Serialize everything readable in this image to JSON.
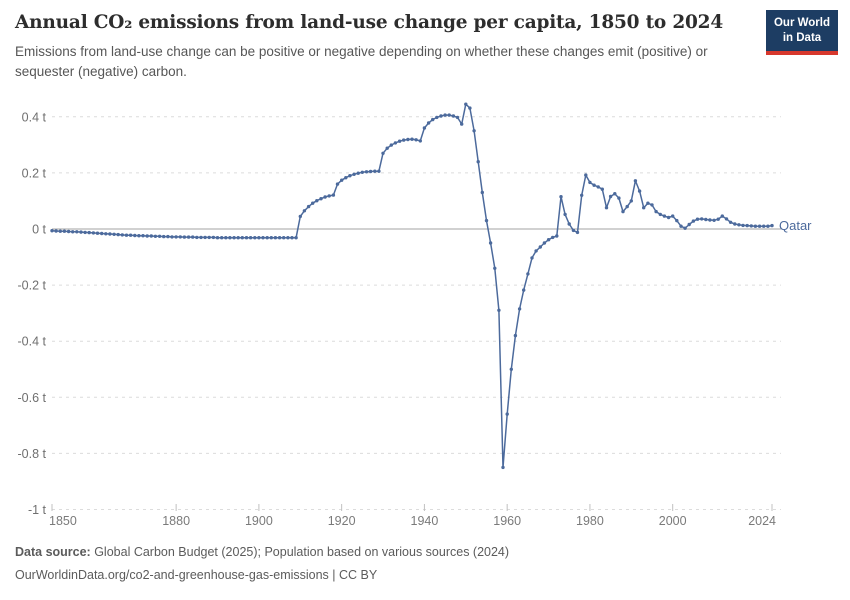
{
  "logo": {
    "line1": "Our World",
    "line2": "in Data",
    "bg_color": "#1d3d63",
    "bar_color": "#d7382d"
  },
  "chart_data": {
    "type": "line",
    "title": "Annual CO₂ emissions from land-use change per capita, 1850 to 2024",
    "subtitle": "Emissions from land-use change can be positive or negative depending on whether these changes emit (positive) or sequester (negative) carbon.",
    "x_range": [
      1850,
      2024
    ],
    "xticks": [
      1850,
      1880,
      1900,
      1920,
      1940,
      1960,
      1980,
      2000,
      2024
    ],
    "yticks": [
      {
        "value": 0.4,
        "label": "0.4 t"
      },
      {
        "value": 0.2,
        "label": "0.2 t"
      },
      {
        "value": 0,
        "label": "0 t"
      },
      {
        "value": -0.2,
        "label": "-0.2 t"
      },
      {
        "value": -0.4,
        "label": "-0.4 t"
      },
      {
        "value": -0.6,
        "label": "-0.6 t"
      },
      {
        "value": -0.8,
        "label": "-0.8 t"
      },
      {
        "value": -1,
        "label": "-1 t"
      }
    ],
    "ylim": [
      -1,
      0.45
    ],
    "grid": true,
    "legend_position": "end-of-line-label",
    "line_color": "#4c6a9c",
    "series": [
      {
        "name": "Qatar",
        "start_year": 1850,
        "values": [
          -0.006,
          -0.007,
          -0.008,
          -0.008,
          -0.009,
          -0.01,
          -0.01,
          -0.011,
          -0.012,
          -0.013,
          -0.014,
          -0.015,
          -0.016,
          -0.017,
          -0.018,
          -0.019,
          -0.02,
          -0.021,
          -0.022,
          -0.022,
          -0.023,
          -0.024,
          -0.024,
          -0.025,
          -0.025,
          -0.026,
          -0.026,
          -0.027,
          -0.027,
          -0.028,
          -0.028,
          -0.028,
          -0.029,
          -0.029,
          -0.029,
          -0.03,
          -0.03,
          -0.03,
          -0.03,
          -0.03,
          -0.031,
          -0.031,
          -0.031,
          -0.031,
          -0.031,
          -0.031,
          -0.031,
          -0.031,
          -0.031,
          -0.031,
          -0.031,
          -0.031,
          -0.031,
          -0.031,
          -0.031,
          -0.031,
          -0.031,
          -0.031,
          -0.031,
          -0.031,
          0.045,
          0.065,
          0.08,
          0.092,
          0.101,
          0.108,
          0.114,
          0.118,
          0.121,
          0.16,
          0.174,
          0.183,
          0.19,
          0.195,
          0.199,
          0.202,
          0.204,
          0.205,
          0.206,
          0.206,
          0.27,
          0.288,
          0.299,
          0.307,
          0.313,
          0.317,
          0.319,
          0.32,
          0.318,
          0.314,
          0.36,
          0.378,
          0.39,
          0.398,
          0.403,
          0.406,
          0.406,
          0.403,
          0.398,
          0.374,
          0.445,
          0.431,
          0.35,
          0.24,
          0.13,
          0.03,
          -0.05,
          -0.14,
          -0.29,
          -0.85,
          -0.66,
          -0.5,
          -0.38,
          -0.285,
          -0.218,
          -0.16,
          -0.103,
          -0.078,
          -0.064,
          -0.05,
          -0.038,
          -0.03,
          -0.025,
          0.115,
          0.052,
          0.018,
          -0.005,
          -0.012,
          0.12,
          0.192,
          0.166,
          0.156,
          0.15,
          0.142,
          0.076,
          0.116,
          0.126,
          0.11,
          0.062,
          0.08,
          0.1,
          0.172,
          0.135,
          0.076,
          0.092,
          0.086,
          0.062,
          0.052,
          0.046,
          0.041,
          0.046,
          0.03,
          0.01,
          0.003,
          0.016,
          0.028,
          0.035,
          0.036,
          0.034,
          0.032,
          0.031,
          0.035,
          0.046,
          0.036,
          0.024,
          0.018,
          0.015,
          0.013,
          0.012,
          0.011,
          0.01,
          0.01,
          0.01,
          0.01,
          0.012
        ]
      }
    ]
  },
  "footer": {
    "source_label": "Data source:",
    "source_text": " Global Carbon Budget (2025); Population based on various sources (2024)",
    "link_text": "OurWorldinData.org/co2-and-greenhouse-gas-emissions",
    "license_text": " | CC BY"
  }
}
